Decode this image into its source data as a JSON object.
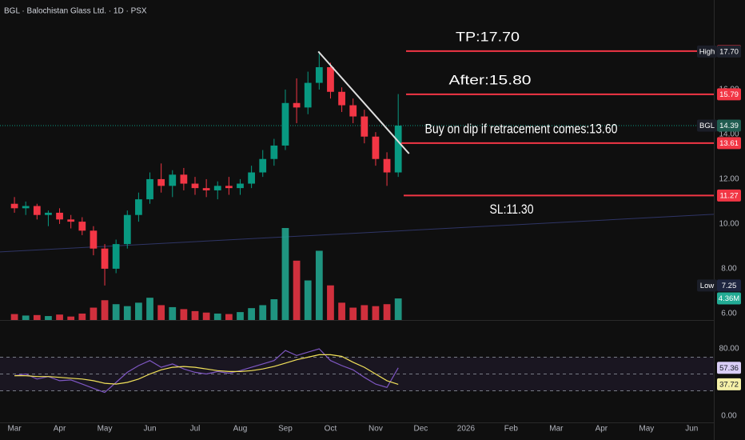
{
  "chart_data": [
    {
      "type": "candlestick",
      "title": "BGL · Balochistan Glass Ltd. · 1D · PSX",
      "x": [
        3,
        3.25,
        3.5,
        3.75,
        4,
        4.25,
        4.5,
        4.75,
        5,
        5.25,
        5.5,
        5.75,
        6,
        6.25,
        6.5,
        6.75,
        7,
        7.25,
        7.5,
        7.75,
        8,
        8.25,
        8.5,
        8.75,
        9,
        9.25,
        9.5,
        9.75,
        10,
        10.25,
        10.5,
        10.75,
        11,
        11.25,
        11.5
      ],
      "open": [
        10.9,
        10.7,
        10.8,
        10.4,
        10.5,
        10.2,
        10.1,
        9.7,
        8.9,
        8.0,
        9.1,
        10.4,
        11.1,
        12.0,
        11.7,
        12.2,
        11.8,
        11.6,
        11.5,
        11.7,
        11.6,
        11.8,
        12.3,
        12.9,
        13.5,
        15.4,
        15.2,
        16.3,
        17.0,
        15.9,
        15.3,
        14.8,
        13.9,
        12.9,
        12.3
      ],
      "high": [
        11.2,
        11.0,
        10.9,
        10.6,
        10.7,
        10.4,
        10.3,
        9.9,
        9.1,
        9.3,
        10.6,
        11.4,
        12.3,
        12.7,
        12.4,
        12.5,
        12.1,
        12.0,
        11.9,
        12.1,
        12.0,
        12.6,
        13.3,
        13.8,
        16.0,
        16.5,
        16.8,
        17.7,
        17.2,
        16.1,
        15.6,
        15.1,
        14.1,
        13.2,
        15.8
      ],
      "low": [
        10.5,
        10.4,
        10.2,
        9.9,
        10.0,
        9.8,
        9.5,
        8.6,
        7.25,
        7.8,
        8.9,
        10.1,
        10.9,
        11.4,
        11.2,
        11.5,
        11.3,
        11.2,
        11.1,
        11.3,
        11.3,
        11.6,
        12.1,
        12.6,
        13.3,
        14.5,
        14.9,
        16.0,
        15.6,
        15.0,
        14.5,
        13.6,
        12.6,
        11.7,
        12.1
      ],
      "close": [
        10.7,
        10.8,
        10.4,
        10.5,
        10.2,
        10.1,
        9.7,
        8.9,
        8.0,
        9.1,
        10.4,
        11.1,
        12.0,
        11.7,
        12.2,
        11.8,
        11.6,
        11.5,
        11.7,
        11.6,
        11.8,
        12.3,
        12.9,
        13.5,
        15.4,
        15.2,
        16.3,
        17.0,
        15.9,
        15.3,
        14.8,
        13.9,
        12.9,
        12.3,
        14.39
      ],
      "up_color": "#089981",
      "down_color": "#f23645",
      "xlim": [
        2.68,
        18.49
      ],
      "ylim": [
        5.71,
        20
      ],
      "xticks": [
        {
          "value": 3,
          "label": "Mar"
        },
        {
          "value": 4,
          "label": "Apr"
        },
        {
          "value": 5,
          "label": "May"
        },
        {
          "value": 6,
          "label": "Jun"
        },
        {
          "value": 7,
          "label": "Jul"
        },
        {
          "value": 8,
          "label": "Aug"
        },
        {
          "value": 9,
          "label": "Sep"
        },
        {
          "value": 10,
          "label": "Oct"
        },
        {
          "value": 11,
          "label": "Nov"
        },
        {
          "value": 12,
          "label": "Dec"
        },
        {
          "value": 13,
          "label": "2026"
        },
        {
          "value": 14,
          "label": "Feb"
        },
        {
          "value": 15,
          "label": "Mar"
        },
        {
          "value": 16,
          "label": "Apr"
        },
        {
          "value": 17,
          "label": "May"
        },
        {
          "value": 18,
          "label": "Jun"
        }
      ],
      "yticks": [
        {
          "value": 6,
          "label": "6.00"
        },
        {
          "value": 8,
          "label": "8.00"
        },
        {
          "value": 10,
          "label": "10.00"
        },
        {
          "value": 12,
          "label": "12.00"
        },
        {
          "value": 14,
          "label": "14.00"
        },
        {
          "value": 16,
          "label": "16.00"
        }
      ],
      "trendline": {
        "x": [
          9.73,
          11.74
        ],
        "y": [
          17.7,
          13.14
        ],
        "color": "#e0e0e0"
      },
      "channel_line": {
        "x": [
          2.68,
          18.49
        ],
        "y": [
          8.75,
          10.43
        ],
        "color": "#2f3566"
      },
      "level_color": "#f23645",
      "levels": [
        {
          "value": 17.72,
          "text": "TP:17.70"
        },
        {
          "value": 15.79,
          "text": "After:15.80"
        },
        {
          "value": 13.61,
          "text": "Buy on dip if retracement comes:13.60"
        },
        {
          "value": 11.27,
          "text": "SL:11.30"
        }
      ],
      "markers": [
        {
          "label": "High",
          "value": 17.7,
          "value_label": "17.70",
          "color": "#1e222d"
        },
        {
          "label": "BGL",
          "value": 14.39,
          "value_label": "14.39",
          "color": "#1f5c50"
        },
        {
          "label": "Low",
          "value": 7.25,
          "value_label": "7.25",
          "color": "#1e2540"
        }
      ]
    },
    {
      "type": "bar",
      "values": [
        1.2,
        0.9,
        1.0,
        0.8,
        1.1,
        0.7,
        1.3,
        2.5,
        4.0,
        3.2,
        2.8,
        3.5,
        4.5,
        3.0,
        2.6,
        2.2,
        1.8,
        1.5,
        1.3,
        1.2,
        1.6,
        2.4,
        3.0,
        4.2,
        18.6,
        12.0,
        8.0,
        14.0,
        7.0,
        3.5,
        2.5,
        3.0,
        2.8,
        3.2,
        4.36
      ],
      "value_labels": [
        null,
        null,
        null,
        null,
        null,
        null,
        null,
        null,
        null,
        null,
        null,
        null,
        null,
        null,
        null,
        null,
        null,
        null,
        null,
        null,
        null,
        null,
        null,
        null,
        null,
        null,
        null,
        null,
        null,
        null,
        null,
        null,
        null,
        null,
        "4.36M"
      ],
      "ylim": [
        0,
        22
      ],
      "up_color": "#22ab94",
      "down_color": "#f23645"
    },
    {
      "type": "line",
      "series": [
        {
          "color": "#7e57c2",
          "label_color": "#d9cdf5",
          "values": [
            48,
            50,
            44,
            47,
            42,
            43,
            38,
            33,
            28,
            40,
            52,
            60,
            66,
            58,
            62,
            56,
            52,
            50,
            53,
            51,
            54,
            58,
            62,
            66,
            78,
            72,
            76,
            80,
            66,
            60,
            55,
            46,
            38,
            34,
            57.36
          ]
        },
        {
          "color": "#f2e25a",
          "label_color": "#f5f0a8",
          "values": [
            48,
            48,
            47,
            47,
            46,
            45,
            44,
            42,
            39,
            38,
            40,
            44,
            50,
            55,
            58,
            59,
            58,
            56,
            54,
            53,
            53,
            54,
            56,
            59,
            63,
            67,
            70,
            73,
            73,
            71,
            64,
            58,
            50,
            42,
            37.72
          ]
        }
      ],
      "ylim": [
        -7.6,
        112.4
      ],
      "yticks": [
        {
          "value": 80,
          "label": "80.00"
        },
        {
          "value": 0,
          "label": "0.00"
        }
      ],
      "band": [
        30,
        70
      ],
      "midline": 50
    }
  ]
}
